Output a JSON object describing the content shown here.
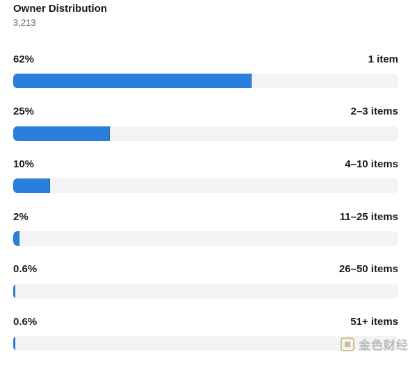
{
  "header": {
    "title": "Owner Distribution",
    "total": "3,213"
  },
  "rows": [
    {
      "percent_label": "62%",
      "range_label": "1 item",
      "fraction": 0.62
    },
    {
      "percent_label": "25%",
      "range_label": "2–3 items",
      "fraction": 0.25
    },
    {
      "percent_label": "10%",
      "range_label": "4–10 items",
      "fraction": 0.095
    },
    {
      "percent_label": "2%",
      "range_label": "11–25 items",
      "fraction": 0.016
    },
    {
      "percent_label": "0.6%",
      "range_label": "26–50 items",
      "fraction": 0.006
    },
    {
      "percent_label": "0.6%",
      "range_label": "51+ items",
      "fraction": 0.006
    }
  ],
  "colors": {
    "bar_fill": "#2a7fdc",
    "bar_track": "#f2f3f5"
  },
  "watermark": {
    "text": "金色财经",
    "icon": "logo-icon"
  }
}
